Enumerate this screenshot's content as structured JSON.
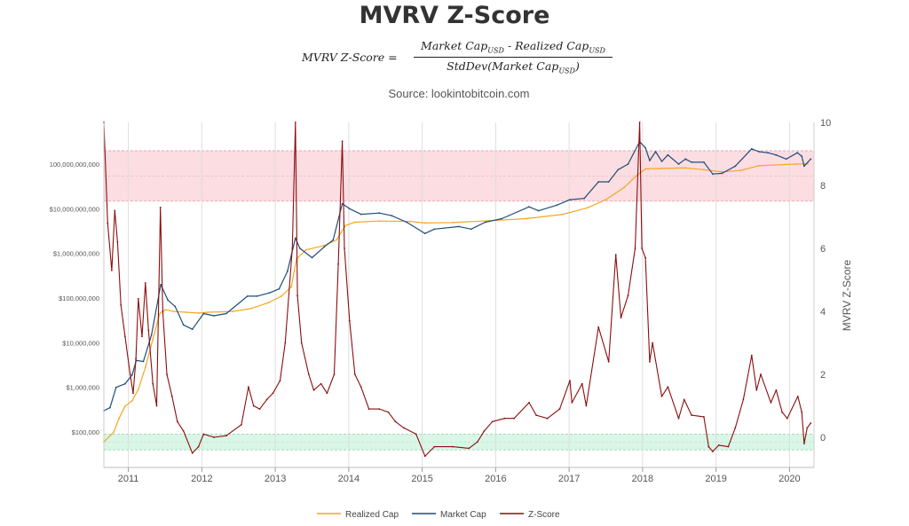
{
  "title": "MVRV Z-Score",
  "formula": {
    "lhs": "MVRV Z-Score =",
    "num_a": "Market Cap",
    "num_b": " - Realized Cap",
    "den_a": "StdDev(Market Cap",
    "den_b": ")",
    "sub": "USD"
  },
  "source": "Source: lookintobitcoin.com",
  "colors": {
    "realized": "#f5a623",
    "market": "#1f4e79",
    "zscore": "#8b0d0d",
    "red_band": "#fbdde2",
    "green_band": "#d9f6e7",
    "grid": "#dddddd"
  },
  "chart_data": {
    "type": "line",
    "xlabel": "",
    "x_ticks": [
      "2011",
      "2012",
      "2013",
      "2014",
      "2015",
      "2016",
      "2017",
      "2018",
      "2019",
      "2020"
    ],
    "xlim": [
      "2010-09",
      "2020-05"
    ],
    "y_left": {
      "scale": "log",
      "ticks": [
        "$100,000",
        "$1,000,000",
        "$10,000,000",
        "$100,000,000",
        "$1,000,000,000",
        "$10,000,000,000",
        "100,000,000,000"
      ],
      "tick_values": [
        100000,
        1000000,
        10000000,
        100000000,
        1000000000,
        10000000000,
        100000000000
      ]
    },
    "y_right": {
      "label": "MVRV Z-Score",
      "ticks": [
        "0",
        "2",
        "4",
        "6",
        "8",
        "10"
      ],
      "tick_values": [
        0,
        2,
        4,
        6,
        8,
        10
      ],
      "ylim": [
        -0.65,
        10
      ]
    },
    "bands": [
      {
        "name": "red",
        "from": 7.5,
        "to": 9.1
      },
      {
        "name": "green",
        "from": -0.4,
        "to": 0.1
      }
    ],
    "legend_position": "bottom",
    "series": [
      {
        "name": "Realized Cap",
        "axis": "left",
        "points": [
          [
            "2010-09-01",
            60000
          ],
          [
            "2010-10-20",
            100000
          ],
          [
            "2010-11-15",
            200000
          ],
          [
            "2010-12-15",
            380000
          ],
          [
            "2011-01-20",
            500000
          ],
          [
            "2011-02-20",
            900000
          ],
          [
            "2011-03-25",
            2800000
          ],
          [
            "2011-05-01",
            12000000
          ],
          [
            "2011-06-05",
            45000000
          ],
          [
            "2011-07-01",
            55000000
          ],
          [
            "2011-08-15",
            50000000
          ],
          [
            "2011-10-15",
            48000000
          ],
          [
            "2011-12-15",
            46000000
          ],
          [
            "2012-02-01",
            48000000
          ],
          [
            "2012-06-01",
            50000000
          ],
          [
            "2012-09-01",
            58000000
          ],
          [
            "2012-12-01",
            80000000
          ],
          [
            "2013-02-01",
            110000000
          ],
          [
            "2013-03-20",
            180000000
          ],
          [
            "2013-04-15",
            750000000
          ],
          [
            "2013-06-01",
            1200000000
          ],
          [
            "2013-09-01",
            1500000000
          ],
          [
            "2013-11-01",
            2000000000
          ],
          [
            "2013-12-15",
            4200000000
          ],
          [
            "2014-02-01",
            5000000000
          ],
          [
            "2014-06-01",
            5300000000
          ],
          [
            "2014-11-01",
            5200000000
          ],
          [
            "2015-01-15",
            4800000000
          ],
          [
            "2015-06-01",
            4900000000
          ],
          [
            "2015-12-01",
            5400000000
          ],
          [
            "2016-06-01",
            6000000000
          ],
          [
            "2016-12-01",
            7500000000
          ],
          [
            "2017-04-01",
            10500000000
          ],
          [
            "2017-07-01",
            16000000000
          ],
          [
            "2017-10-01",
            30000000000
          ],
          [
            "2017-12-01",
            55000000000
          ],
          [
            "2018-01-15",
            78000000000
          ],
          [
            "2018-04-01",
            80000000000
          ],
          [
            "2018-08-01",
            82000000000
          ],
          [
            "2018-11-01",
            75000000000
          ],
          [
            "2019-02-01",
            67000000000
          ],
          [
            "2019-05-01",
            72000000000
          ],
          [
            "2019-08-01",
            92000000000
          ],
          [
            "2020-02-01",
            100000000000
          ],
          [
            "2020-04-01",
            102000000000
          ]
        ]
      },
      {
        "name": "Market Cap",
        "axis": "left",
        "points": [
          [
            "2010-09-01",
            300000
          ],
          [
            "2010-10-01",
            350000
          ],
          [
            "2010-11-01",
            1000000
          ],
          [
            "2010-12-15",
            1200000
          ],
          [
            "2011-01-20",
            1900000
          ],
          [
            "2011-02-10",
            4000000
          ],
          [
            "2011-03-15",
            3800000
          ],
          [
            "2011-04-25",
            15000000
          ],
          [
            "2011-06-10",
            200000000
          ],
          [
            "2011-07-15",
            90000000
          ],
          [
            "2011-08-20",
            65000000
          ],
          [
            "2011-10-01",
            25000000
          ],
          [
            "2011-11-15",
            20000000
          ],
          [
            "2012-01-10",
            45000000
          ],
          [
            "2012-03-01",
            40000000
          ],
          [
            "2012-05-01",
            45000000
          ],
          [
            "2012-08-15",
            110000000
          ],
          [
            "2012-10-01",
            110000000
          ],
          [
            "2012-12-01",
            130000000
          ],
          [
            "2013-01-20",
            160000000
          ],
          [
            "2013-03-01",
            400000000
          ],
          [
            "2013-04-10",
            2200000000
          ],
          [
            "2013-05-01",
            1300000000
          ],
          [
            "2013-07-01",
            800000000
          ],
          [
            "2013-09-01",
            1400000000
          ],
          [
            "2013-10-15",
            2000000000
          ],
          [
            "2013-11-30",
            13000000000
          ],
          [
            "2014-01-05",
            10000000000
          ],
          [
            "2014-03-01",
            7500000000
          ],
          [
            "2014-06-01",
            8000000000
          ],
          [
            "2014-08-01",
            7000000000
          ],
          [
            "2014-10-15",
            5000000000
          ],
          [
            "2015-01-15",
            2800000000
          ],
          [
            "2015-03-01",
            3500000000
          ],
          [
            "2015-07-01",
            4000000000
          ],
          [
            "2015-09-01",
            3500000000
          ],
          [
            "2015-11-10",
            5000000000
          ],
          [
            "2016-02-01",
            6000000000
          ],
          [
            "2016-06-15",
            11000000000
          ],
          [
            "2016-08-01",
            9000000000
          ],
          [
            "2016-11-01",
            12000000000
          ],
          [
            "2017-01-05",
            16000000000
          ],
          [
            "2017-03-15",
            17000000000
          ],
          [
            "2017-05-25",
            40000000000
          ],
          [
            "2017-07-15",
            40000000000
          ],
          [
            "2017-09-01",
            75000000000
          ],
          [
            "2017-10-20",
            100000000000
          ],
          [
            "2017-12-17",
            320000000000
          ],
          [
            "2018-01-15",
            230000000000
          ],
          [
            "2018-02-06",
            120000000000
          ],
          [
            "2018-03-05",
            190000000000
          ],
          [
            "2018-04-05",
            115000000000
          ],
          [
            "2018-05-05",
            160000000000
          ],
          [
            "2018-06-28",
            100000000000
          ],
          [
            "2018-08-01",
            130000000000
          ],
          [
            "2018-09-01",
            110000000000
          ],
          [
            "2018-11-01",
            110000000000
          ],
          [
            "2018-12-15",
            60000000000
          ],
          [
            "2019-02-01",
            62000000000
          ],
          [
            "2019-04-05",
            90000000000
          ],
          [
            "2019-06-26",
            220000000000
          ],
          [
            "2019-08-01",
            190000000000
          ],
          [
            "2019-09-15",
            180000000000
          ],
          [
            "2019-10-25",
            160000000000
          ],
          [
            "2019-12-15",
            130000000000
          ],
          [
            "2020-02-10",
            180000000000
          ],
          [
            "2020-03-01",
            150000000000
          ],
          [
            "2020-03-13",
            90000000000
          ],
          [
            "2020-04-15",
            130000000000
          ]
        ]
      },
      {
        "name": "Z-Score",
        "axis": "right",
        "points": [
          [
            "2010-09-01",
            10
          ],
          [
            "2010-09-20",
            6.8
          ],
          [
            "2010-10-10",
            5.3
          ],
          [
            "2010-10-25",
            7.2
          ],
          [
            "2010-11-08",
            6.2
          ],
          [
            "2010-11-25",
            4.2
          ],
          [
            "2010-12-15",
            3.2
          ],
          [
            "2011-01-10",
            2.0
          ],
          [
            "2011-01-25",
            1.4
          ],
          [
            "2011-02-08",
            2.5
          ],
          [
            "2011-02-20",
            4.4
          ],
          [
            "2011-03-08",
            3.2
          ],
          [
            "2011-03-25",
            4.9
          ],
          [
            "2011-04-10",
            3.4
          ],
          [
            "2011-05-01",
            1.7
          ],
          [
            "2011-05-20",
            1.0
          ],
          [
            "2011-06-08",
            7.3
          ],
          [
            "2011-06-20",
            4.0
          ],
          [
            "2011-07-10",
            2.0
          ],
          [
            "2011-08-05",
            1.3
          ],
          [
            "2011-09-01",
            0.5
          ],
          [
            "2011-10-01",
            0.2
          ],
          [
            "2011-11-15",
            -0.5
          ],
          [
            "2011-12-15",
            -0.3
          ],
          [
            "2012-01-10",
            0.1
          ],
          [
            "2012-03-01",
            0.0
          ],
          [
            "2012-05-01",
            0.05
          ],
          [
            "2012-07-15",
            0.4
          ],
          [
            "2012-08-20",
            1.6
          ],
          [
            "2012-09-15",
            1.0
          ],
          [
            "2012-10-15",
            0.9
          ],
          [
            "2012-11-20",
            1.2
          ],
          [
            "2012-12-20",
            1.4
          ],
          [
            "2013-01-25",
            1.8
          ],
          [
            "2013-02-20",
            3.0
          ],
          [
            "2013-03-25",
            6.0
          ],
          [
            "2013-04-10",
            10.0
          ],
          [
            "2013-04-20",
            4.5
          ],
          [
            "2013-05-10",
            3.0
          ],
          [
            "2013-06-15",
            2.0
          ],
          [
            "2013-07-10",
            1.5
          ],
          [
            "2013-08-15",
            1.7
          ],
          [
            "2013-09-15",
            1.4
          ],
          [
            "2013-10-20",
            2.0
          ],
          [
            "2013-11-10",
            5.5
          ],
          [
            "2013-11-30",
            9.4
          ],
          [
            "2013-12-10",
            6.0
          ],
          [
            "2014-01-05",
            3.7
          ],
          [
            "2014-02-01",
            2.0
          ],
          [
            "2014-03-01",
            1.6
          ],
          [
            "2014-04-10",
            0.9
          ],
          [
            "2014-06-01",
            0.9
          ],
          [
            "2014-07-15",
            0.8
          ],
          [
            "2014-08-20",
            0.5
          ],
          [
            "2014-10-01",
            0.3
          ],
          [
            "2014-12-01",
            0.1
          ],
          [
            "2015-01-15",
            -0.6
          ],
          [
            "2015-03-01",
            -0.3
          ],
          [
            "2015-06-01",
            -0.3
          ],
          [
            "2015-08-20",
            -0.35
          ],
          [
            "2015-10-01",
            -0.15
          ],
          [
            "2015-11-05",
            0.2
          ],
          [
            "2015-12-15",
            0.5
          ],
          [
            "2016-02-15",
            0.6
          ],
          [
            "2016-04-01",
            0.6
          ],
          [
            "2016-06-15",
            1.1
          ],
          [
            "2016-07-20",
            0.7
          ],
          [
            "2016-09-15",
            0.6
          ],
          [
            "2016-11-15",
            0.9
          ],
          [
            "2017-01-05",
            1.8
          ],
          [
            "2017-01-15",
            1.1
          ],
          [
            "2017-03-05",
            1.7
          ],
          [
            "2017-03-25",
            1.0
          ],
          [
            "2017-05-25",
            3.5
          ],
          [
            "2017-07-15",
            2.4
          ],
          [
            "2017-08-20",
            5.8
          ],
          [
            "2017-09-15",
            3.8
          ],
          [
            "2017-10-20",
            4.5
          ],
          [
            "2017-11-25",
            6.0
          ],
          [
            "2017-12-17",
            10.0
          ],
          [
            "2017-12-28",
            6.0
          ],
          [
            "2018-01-15",
            5.7
          ],
          [
            "2018-02-06",
            2.4
          ],
          [
            "2018-02-20",
            3.0
          ],
          [
            "2018-04-05",
            1.3
          ],
          [
            "2018-05-05",
            1.6
          ],
          [
            "2018-06-28",
            0.6
          ],
          [
            "2018-07-25",
            1.2
          ],
          [
            "2018-09-01",
            0.7
          ],
          [
            "2018-11-01",
            0.65
          ],
          [
            "2018-11-25",
            -0.3
          ],
          [
            "2018-12-15",
            -0.45
          ],
          [
            "2019-01-15",
            -0.25
          ],
          [
            "2019-03-01",
            -0.3
          ],
          [
            "2019-04-05",
            0.3
          ],
          [
            "2019-05-15",
            1.2
          ],
          [
            "2019-06-26",
            2.6
          ],
          [
            "2019-07-20",
            1.5
          ],
          [
            "2019-08-10",
            2.0
          ],
          [
            "2019-09-30",
            1.1
          ],
          [
            "2019-10-26",
            1.5
          ],
          [
            "2019-11-25",
            0.8
          ],
          [
            "2019-12-20",
            0.6
          ],
          [
            "2020-02-12",
            1.3
          ],
          [
            "2020-03-01",
            0.8
          ],
          [
            "2020-03-13",
            -0.2
          ],
          [
            "2020-03-28",
            0.3
          ],
          [
            "2020-04-15",
            0.45
          ]
        ]
      }
    ]
  }
}
